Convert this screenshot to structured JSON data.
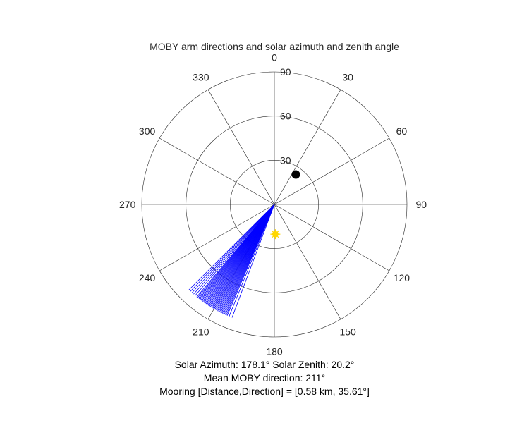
{
  "chart_data": {
    "type": "polar",
    "title": "MOBY arm directions and solar azimuth and zenith angle",
    "angle_zero": "top",
    "angle_direction": "clockwise",
    "angle_ticks": [
      0,
      30,
      60,
      90,
      120,
      150,
      180,
      210,
      240,
      270,
      300,
      330
    ],
    "angle_tick_labels": [
      "0",
      "30",
      "60",
      "90",
      "120",
      "150",
      "180",
      "210",
      "240",
      "270",
      "300",
      "330"
    ],
    "radius_max": 90,
    "radius_ticks": [
      30,
      60,
      90
    ],
    "radius_tick_labels": [
      "30",
      "60",
      "90"
    ],
    "series": [
      {
        "kind": "arm_directions",
        "color": "#0000ff",
        "radius": [
          0,
          82
        ],
        "angles_deg": [
          200.5,
          202,
          203,
          203.5,
          204,
          204.5,
          205,
          205.5,
          206,
          206.5,
          207,
          207.5,
          208,
          208.5,
          209,
          209.5,
          210,
          210.5,
          211,
          211.5,
          212,
          212.5,
          213,
          213.5,
          214,
          214.5,
          215,
          215.5,
          216,
          216.5,
          217,
          217.5,
          218,
          218.5,
          219,
          219.5,
          220,
          221,
          222,
          223,
          224,
          225
        ]
      },
      {
        "kind": "marker",
        "marker": "circle",
        "color": "#000000",
        "theta": 35.61,
        "r": 25
      },
      {
        "kind": "marker",
        "marker": "sun",
        "color": "#ffd700",
        "theta": 178.1,
        "r": 20.2
      }
    ]
  },
  "captions": {
    "solar": "Solar Azimuth: 178.1°    Solar Zenith: 20.2°",
    "moby_direction": "Mean MOBY direction: 211°",
    "mooring": "Mooring [Distance,Direction] = [0.58 km, 35.61°]"
  }
}
